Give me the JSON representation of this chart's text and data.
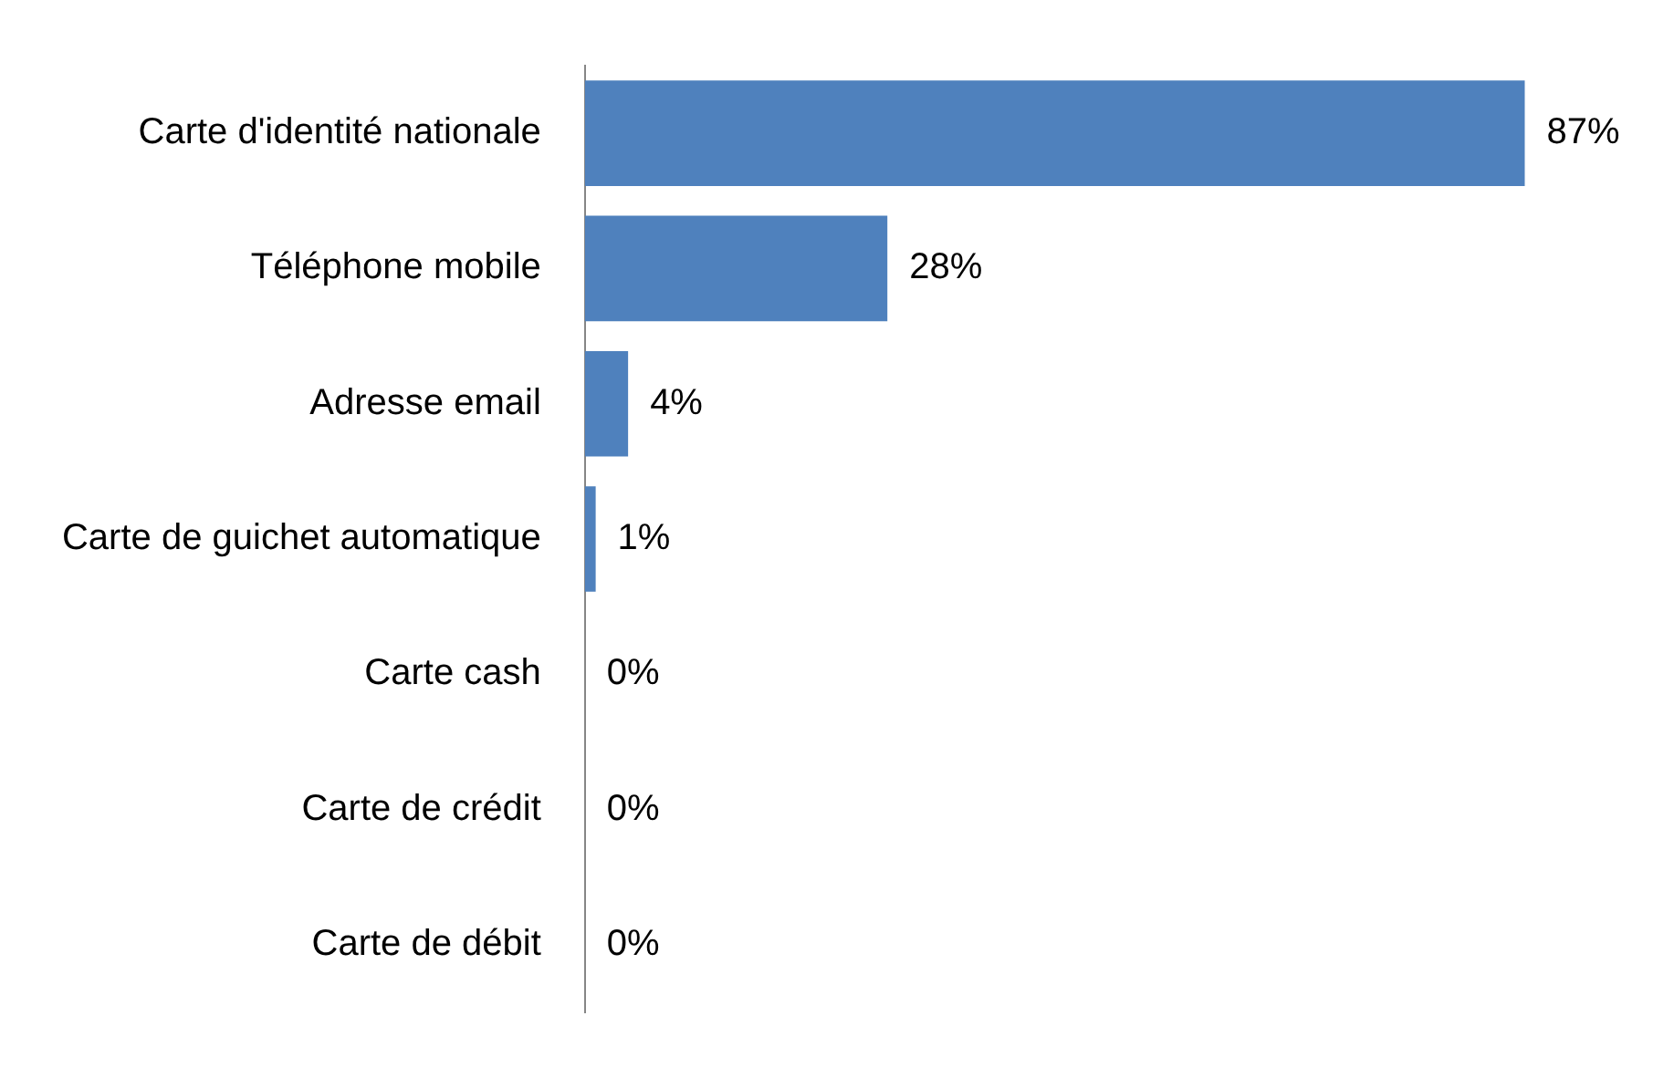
{
  "chart_data": {
    "type": "bar",
    "orientation": "horizontal",
    "categories": [
      "Carte d'identité nationale",
      "Téléphone mobile",
      "Adresse email",
      "Carte de guichet automatique",
      "Carte cash",
      "Carte de crédit",
      "Carte de débit"
    ],
    "values": [
      87,
      28,
      4,
      1,
      0,
      0,
      0
    ],
    "value_labels": [
      "87%",
      "28%",
      "4%",
      "1%",
      "0%",
      "0%",
      "0%"
    ],
    "color": "#4f81bd",
    "legend": false
  }
}
